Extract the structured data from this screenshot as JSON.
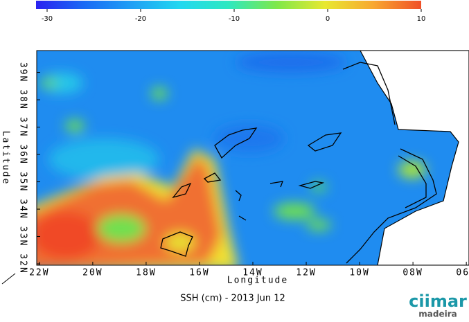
{
  "colorbar": {
    "lim": [
      -30,
      10
    ],
    "ticks": [
      -30,
      -20,
      -10,
      0,
      10
    ],
    "colors": [
      "#2a22f0",
      "#1a6af5",
      "#1fa0f5",
      "#22d8f0",
      "#2ee8c0",
      "#7ee84a",
      "#e8e830",
      "#f8a830",
      "#f05028"
    ]
  },
  "map": {
    "xlabel": "Longitude",
    "ylabel": "Latitude",
    "xlim": [
      -22.1,
      -5.9
    ],
    "ylim": [
      31.95,
      39.8
    ],
    "xticks": [
      {
        "value": -22,
        "label": "22W"
      },
      {
        "value": -20,
        "label": "20W"
      },
      {
        "value": -18,
        "label": "18W"
      },
      {
        "value": -16,
        "label": "16W"
      },
      {
        "value": -14,
        "label": "14W"
      },
      {
        "value": -12,
        "label": "12W"
      },
      {
        "value": -10,
        "label": "10W"
      },
      {
        "value": -8,
        "label": "08W"
      },
      {
        "value": -6,
        "label": "06W"
      }
    ],
    "yticks": [
      {
        "value": 32,
        "label": "32N"
      },
      {
        "value": 33,
        "label": "33N"
      },
      {
        "value": 34,
        "label": "34N"
      },
      {
        "value": 35,
        "label": "35N"
      },
      {
        "value": 36,
        "label": "36N"
      },
      {
        "value": 37,
        "label": "37N"
      },
      {
        "value": 38,
        "label": "38N"
      },
      {
        "value": 39,
        "label": "39N"
      }
    ]
  },
  "caption": "SSH (cm) - 2013 Jun 12",
  "logo": {
    "name": "ciimar",
    "sub": "madeira"
  }
}
